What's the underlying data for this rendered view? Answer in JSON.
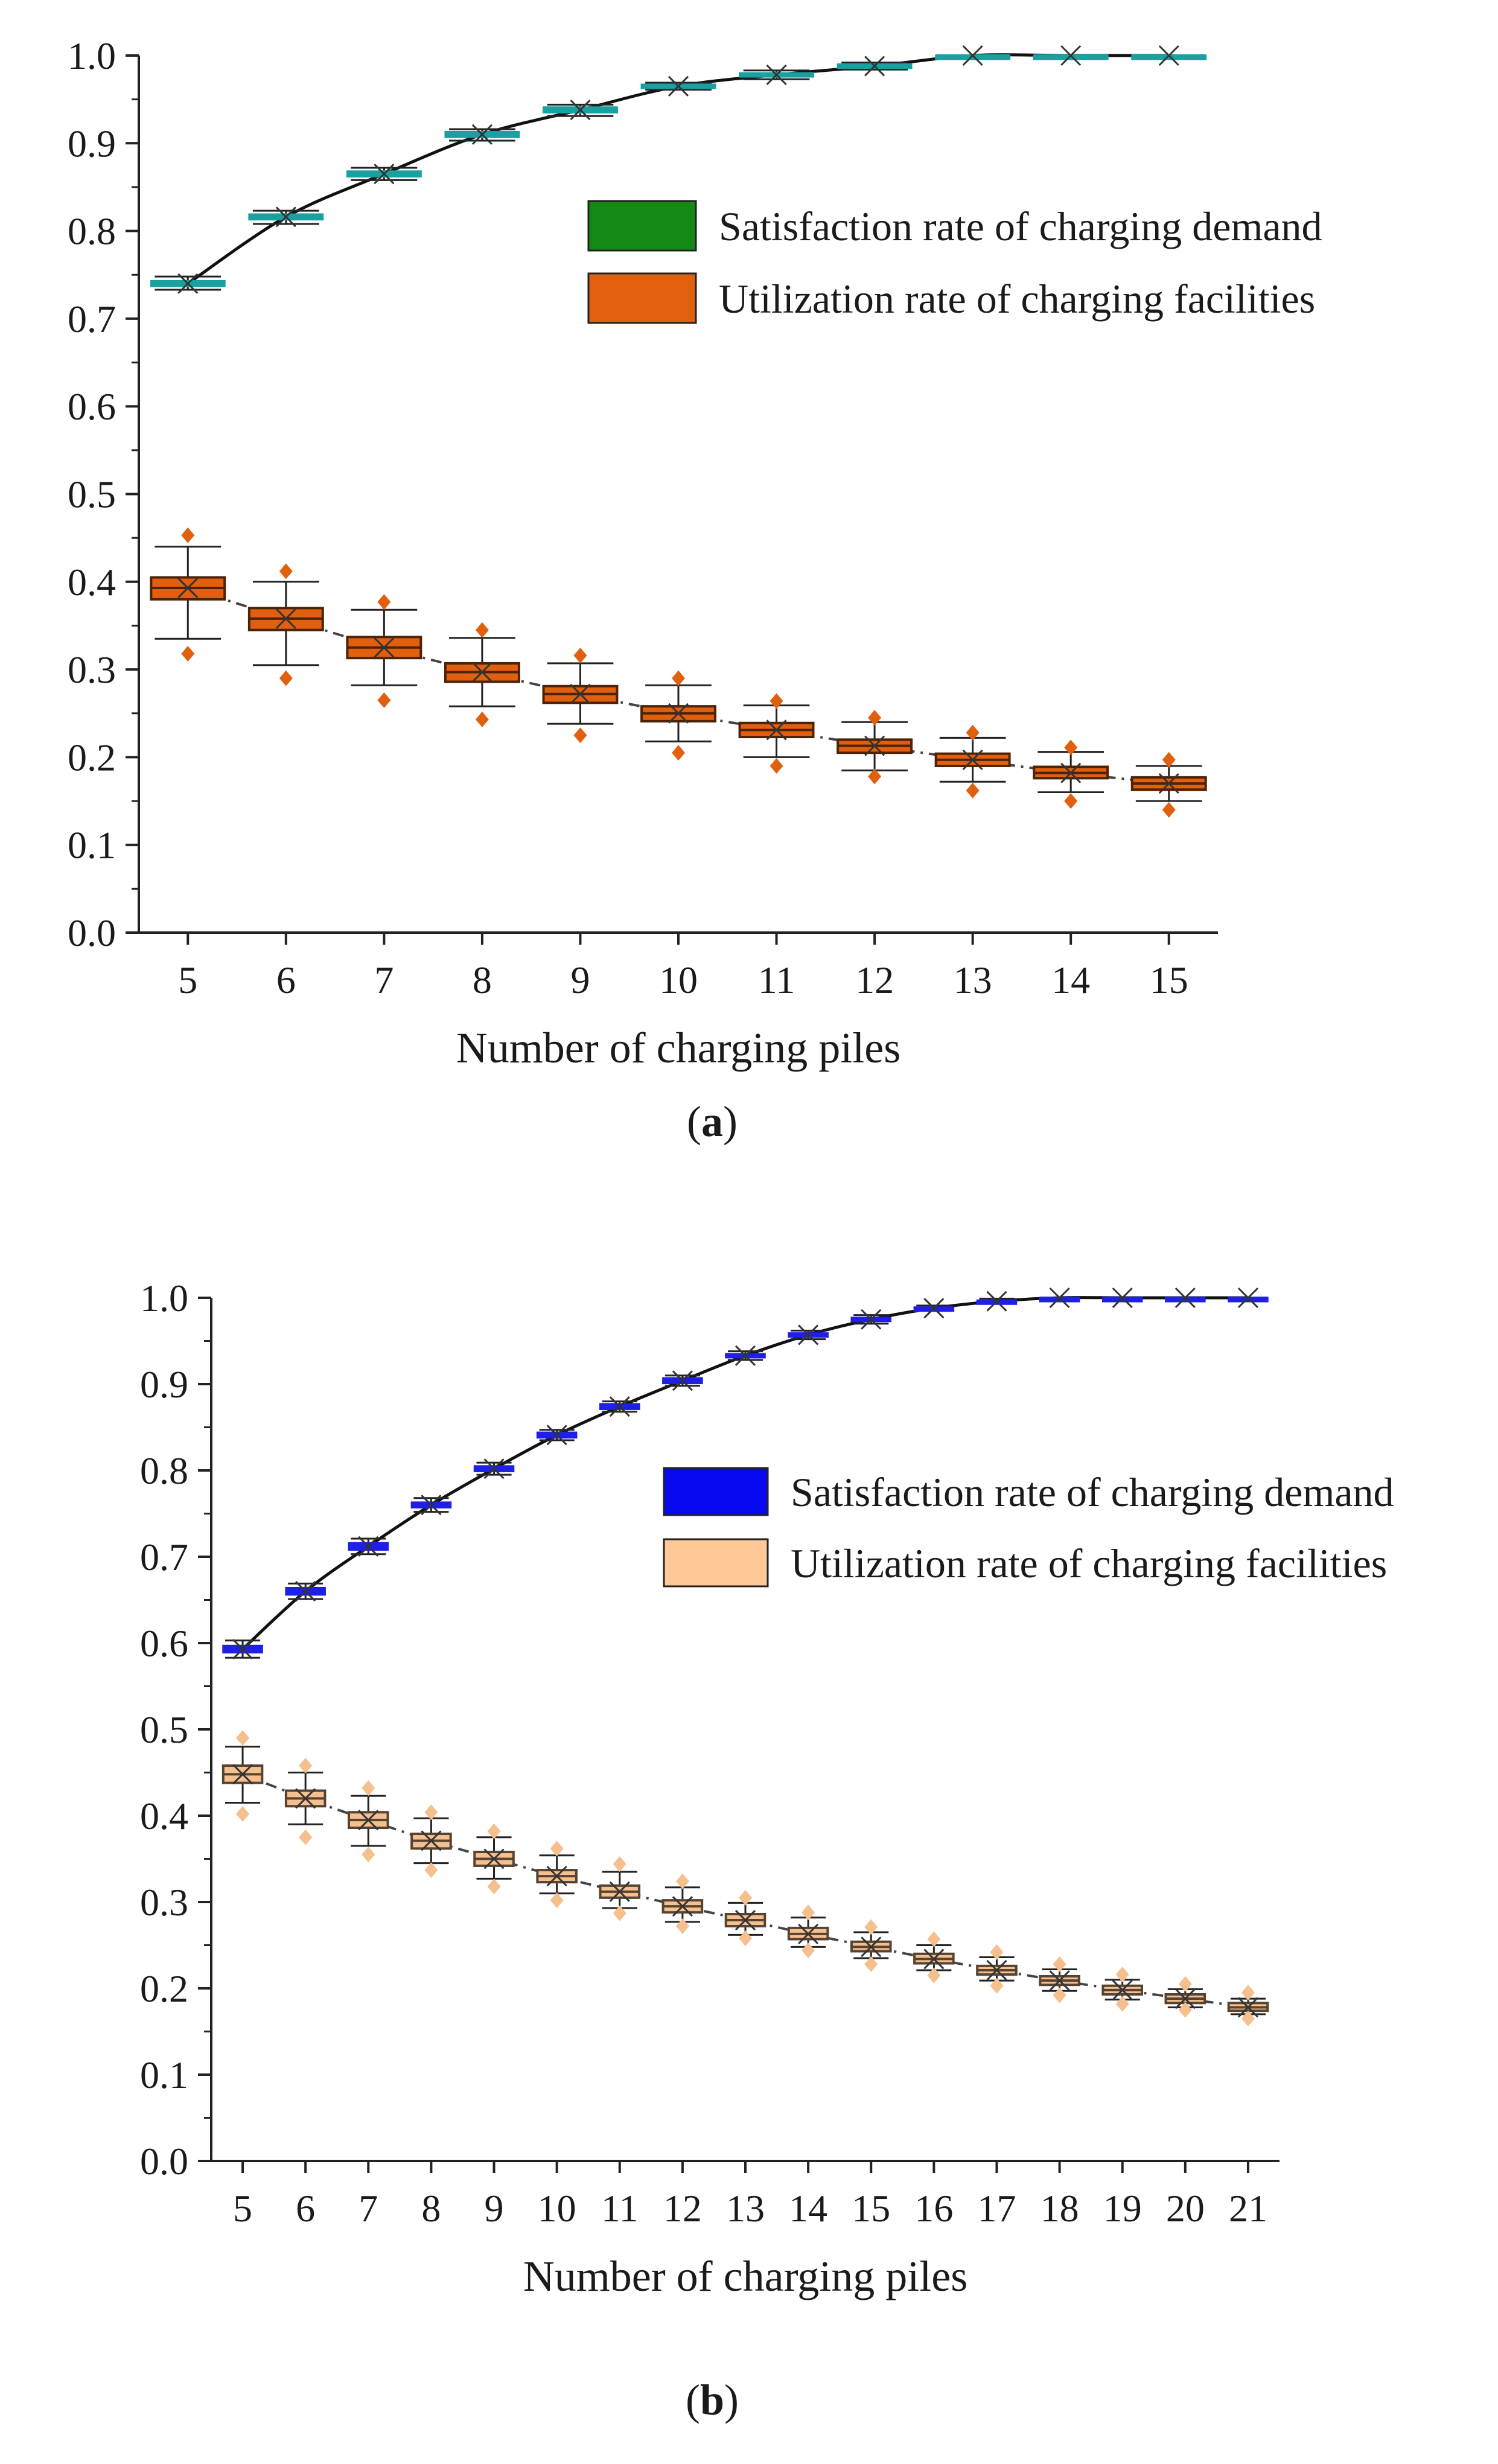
{
  "chart_data": [
    {
      "type": "box",
      "panel_label": "a",
      "xlabel": "Number of charging piles",
      "ylabel": "",
      "ylim": [
        0,
        1.0
      ],
      "yticks": [
        "0.0",
        "0.1",
        "0.2",
        "0.3",
        "0.4",
        "0.5",
        "0.6",
        "0.7",
        "0.8",
        "0.9",
        "1.0"
      ],
      "categories": [
        "5",
        "6",
        "7",
        "8",
        "9",
        "10",
        "11",
        "12",
        "13",
        "14",
        "15"
      ],
      "legend": {
        "placement": "upper-right"
      },
      "series": [
        {
          "name": "Satisfaction rate of charging demand",
          "color": "#1aa0a0",
          "legend_color": "#138a13",
          "mean_line": "solid",
          "median": [
            0.74,
            0.816,
            0.865,
            0.91,
            0.938,
            0.965,
            0.978,
            0.988,
            1.0,
            1.0,
            1.0
          ],
          "q1": [
            0.737,
            0.813,
            0.862,
            0.907,
            0.935,
            0.963,
            0.976,
            0.986,
            1.0,
            1.0,
            1.0
          ],
          "q3": [
            0.743,
            0.819,
            0.868,
            0.913,
            0.941,
            0.967,
            0.98,
            0.99,
            1.0,
            1.0,
            1.0
          ],
          "low": [
            0.733,
            0.808,
            0.858,
            0.903,
            0.931,
            0.961,
            0.973,
            0.984,
            0.998,
            1.0,
            1.0
          ],
          "high": [
            0.748,
            0.823,
            0.872,
            0.916,
            0.944,
            0.969,
            0.983,
            0.992,
            1.0,
            1.0,
            1.0
          ]
        },
        {
          "name": "Utilization rate of charging facilities",
          "color": "#e0600f",
          "legend_color": "#e0600f",
          "mean_line": "dashdot",
          "median": [
            0.393,
            0.358,
            0.325,
            0.297,
            0.272,
            0.25,
            0.231,
            0.213,
            0.197,
            0.182,
            0.17
          ],
          "q1": [
            0.38,
            0.345,
            0.313,
            0.286,
            0.262,
            0.241,
            0.223,
            0.205,
            0.19,
            0.176,
            0.163
          ],
          "q3": [
            0.405,
            0.37,
            0.337,
            0.307,
            0.281,
            0.258,
            0.239,
            0.22,
            0.204,
            0.189,
            0.177
          ],
          "low": [
            0.335,
            0.305,
            0.282,
            0.258,
            0.238,
            0.218,
            0.2,
            0.185,
            0.172,
            0.16,
            0.15
          ],
          "high": [
            0.44,
            0.4,
            0.368,
            0.336,
            0.307,
            0.282,
            0.259,
            0.24,
            0.222,
            0.206,
            0.19
          ],
          "outliers_low": [
            0.318,
            0.29,
            0.265,
            0.243,
            0.225,
            0.205,
            0.19,
            0.178,
            0.162,
            0.15,
            0.14
          ],
          "outliers_high": [
            0.453,
            0.412,
            0.377,
            0.345,
            0.316,
            0.29,
            0.264,
            0.245,
            0.228,
            0.211,
            0.197
          ]
        }
      ]
    },
    {
      "type": "box",
      "panel_label": "b",
      "xlabel": "Number of charging piles",
      "ylabel": "",
      "ylim": [
        0,
        1.0
      ],
      "yticks": [
        "0.0",
        "0.1",
        "0.2",
        "0.3",
        "0.4",
        "0.5",
        "0.6",
        "0.7",
        "0.8",
        "0.9",
        "1.0"
      ],
      "categories": [
        "5",
        "6",
        "7",
        "8",
        "9",
        "10",
        "11",
        "12",
        "13",
        "14",
        "15",
        "16",
        "17",
        "18",
        "19",
        "20",
        "21"
      ],
      "legend": {
        "placement": "upper-right"
      },
      "series": [
        {
          "name": "Satisfaction rate of charging demand",
          "color": "#1f1fe8",
          "legend_color": "#0808f0",
          "mean_line": "solid",
          "median": [
            0.593,
            0.66,
            0.712,
            0.76,
            0.802,
            0.841,
            0.874,
            0.904,
            0.933,
            0.957,
            0.975,
            0.988,
            0.996,
            1.0,
            1.0,
            1.0,
            1.0
          ],
          "q1": [
            0.589,
            0.656,
            0.708,
            0.757,
            0.799,
            0.838,
            0.871,
            0.901,
            0.931,
            0.955,
            0.973,
            0.987,
            0.995,
            1.0,
            1.0,
            1.0,
            1.0
          ],
          "q3": [
            0.597,
            0.664,
            0.716,
            0.763,
            0.805,
            0.844,
            0.877,
            0.907,
            0.935,
            0.959,
            0.977,
            0.989,
            0.997,
            1.0,
            1.0,
            1.0,
            1.0
          ],
          "low": [
            0.583,
            0.651,
            0.703,
            0.752,
            0.795,
            0.835,
            0.868,
            0.898,
            0.928,
            0.952,
            0.97,
            0.985,
            0.993,
            1.0,
            1.0,
            1.0,
            1.0
          ],
          "high": [
            0.603,
            0.669,
            0.721,
            0.768,
            0.809,
            0.847,
            0.88,
            0.91,
            0.938,
            0.962,
            0.98,
            0.991,
            0.999,
            1.0,
            1.0,
            1.0,
            1.0
          ]
        },
        {
          "name": "Utilization rate of charging facilities",
          "color": "#f5c08e",
          "legend_color": "#ffc896",
          "mean_line": "dashdot",
          "median": [
            0.448,
            0.42,
            0.395,
            0.371,
            0.35,
            0.33,
            0.312,
            0.295,
            0.279,
            0.263,
            0.248,
            0.234,
            0.221,
            0.209,
            0.198,
            0.188,
            0.178
          ],
          "q1": [
            0.438,
            0.411,
            0.386,
            0.362,
            0.342,
            0.323,
            0.305,
            0.288,
            0.272,
            0.257,
            0.243,
            0.229,
            0.216,
            0.204,
            0.193,
            0.183,
            0.174
          ],
          "q3": [
            0.458,
            0.429,
            0.404,
            0.379,
            0.358,
            0.337,
            0.319,
            0.302,
            0.286,
            0.27,
            0.254,
            0.24,
            0.226,
            0.214,
            0.203,
            0.193,
            0.183
          ],
          "low": [
            0.415,
            0.39,
            0.365,
            0.345,
            0.327,
            0.31,
            0.293,
            0.277,
            0.262,
            0.248,
            0.235,
            0.221,
            0.209,
            0.197,
            0.187,
            0.178,
            0.17
          ],
          "high": [
            0.48,
            0.45,
            0.423,
            0.397,
            0.375,
            0.354,
            0.335,
            0.317,
            0.299,
            0.282,
            0.265,
            0.25,
            0.236,
            0.222,
            0.21,
            0.199,
            0.188
          ],
          "outliers_low": [
            0.402,
            0.375,
            0.355,
            0.337,
            0.318,
            0.302,
            0.287,
            0.272,
            0.258,
            0.244,
            0.228,
            0.215,
            0.203,
            0.192,
            0.182,
            0.175,
            0.165
          ],
          "outliers_high": [
            0.49,
            0.458,
            0.432,
            0.404,
            0.382,
            0.362,
            0.344,
            0.324,
            0.305,
            0.288,
            0.271,
            0.257,
            0.242,
            0.228,
            0.216,
            0.205,
            0.195
          ]
        }
      ]
    }
  ]
}
